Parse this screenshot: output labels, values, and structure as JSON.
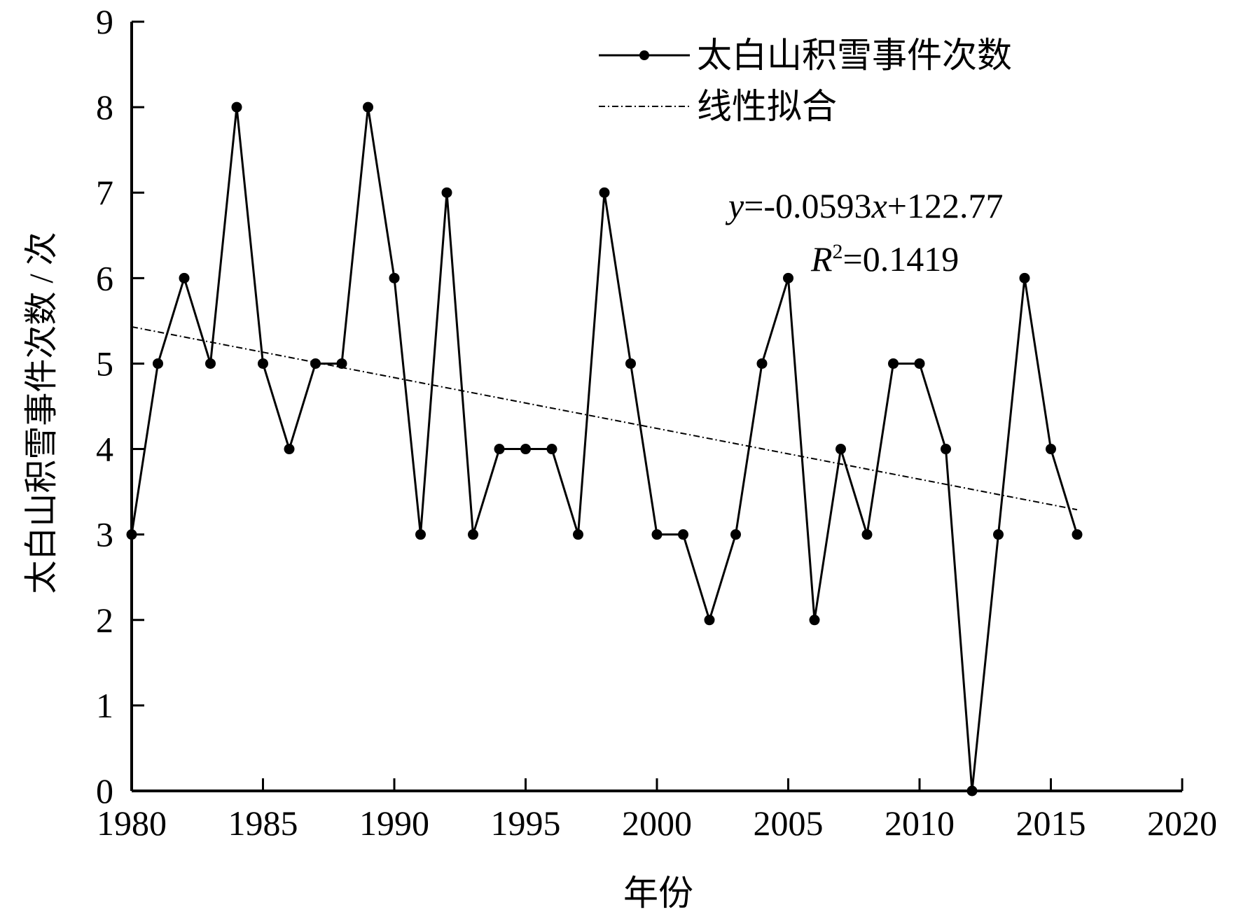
{
  "chart_data": {
    "type": "line",
    "title": "",
    "xlabel": "年份",
    "ylabel": "太白山积雪事件次数 / 次",
    "xlim": [
      1980,
      2020
    ],
    "ylim": [
      0,
      9
    ],
    "x_ticks": [
      1980,
      1985,
      1990,
      1995,
      2000,
      2005,
      2010,
      2015,
      2020
    ],
    "y_ticks": [
      0,
      1,
      2,
      3,
      4,
      5,
      6,
      7,
      8,
      9
    ],
    "grid": false,
    "legend_position": "top-right",
    "series": [
      {
        "name": "太白山积雪事件次数",
        "style": "solid-marker",
        "x": [
          1980,
          1981,
          1982,
          1983,
          1984,
          1985,
          1986,
          1987,
          1988,
          1989,
          1990,
          1991,
          1992,
          1993,
          1994,
          1995,
          1996,
          1997,
          1998,
          1999,
          2000,
          2001,
          2002,
          2003,
          2004,
          2005,
          2006,
          2007,
          2008,
          2009,
          2010,
          2011,
          2012,
          2013,
          2014,
          2015,
          2016
        ],
        "y": [
          3,
          5,
          6,
          5,
          8,
          5,
          4,
          5,
          5,
          8,
          6,
          3,
          7,
          3,
          4,
          4,
          4,
          3,
          7,
          5,
          3,
          3,
          2,
          3,
          5,
          6,
          2,
          4,
          3,
          5,
          5,
          4,
          0,
          3,
          6,
          4,
          3
        ]
      },
      {
        "name": "线性拟合",
        "style": "dash-dot",
        "x": [
          1980,
          2016
        ],
        "y": [
          5.43,
          3.29
        ]
      }
    ],
    "annotations": {
      "equation_var_y": "y",
      "equation_mid": "=-0.0593",
      "equation_var_x": "x",
      "equation_tail": "+122.77",
      "r2_var": "R",
      "r2_sup": "2",
      "r2_value": "=0.1419"
    },
    "colors": {
      "line": "#000000",
      "fit": "#000000"
    }
  }
}
